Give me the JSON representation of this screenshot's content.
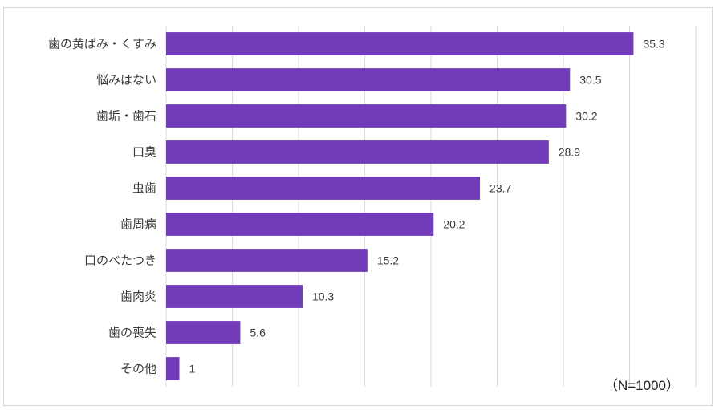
{
  "note": "（N=1000）",
  "colors": {
    "bar": "#713bb9",
    "grid": "#d9d9d9",
    "text": "#3a3a3a"
  },
  "chart_data": {
    "type": "bar",
    "orientation": "horizontal",
    "categories": [
      "歯の黄ばみ・くすみ",
      "悩みはない",
      "歯垢・歯石",
      "口臭",
      "虫歯",
      "歯周病",
      "口のべたつき",
      "歯肉炎",
      "歯の喪失",
      "その他"
    ],
    "values": [
      35.3,
      30.5,
      30.2,
      28.9,
      23.7,
      20.2,
      15.2,
      10.3,
      5.6,
      1
    ],
    "xlim": [
      0,
      40
    ],
    "grid": true,
    "legend": "none"
  }
}
